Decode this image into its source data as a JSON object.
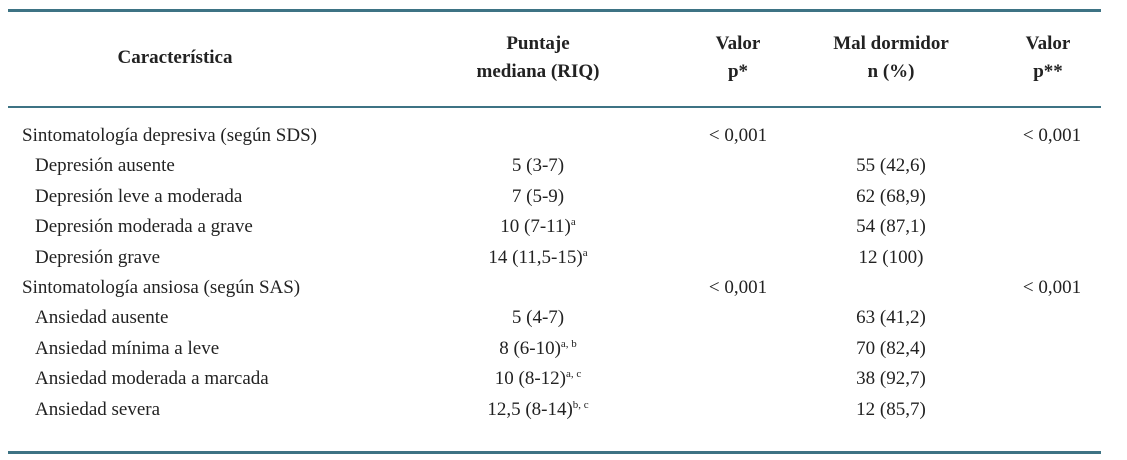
{
  "table": {
    "header": [
      [
        "Característica"
      ],
      [
        "Puntaje",
        "mediana (RIQ)"
      ],
      [
        "Valor",
        "p*"
      ],
      [
        "Mal dormidor",
        "n (%)"
      ],
      [
        "Valor",
        "p**"
      ]
    ],
    "groups": [
      {
        "label": "Sintomatología depresiva (según SDS)",
        "p": "< 0,001",
        "p2": "< 0,001",
        "items": [
          {
            "label": "Depresión ausente",
            "score": "5 (3-7)",
            "n": "55 (42,6)"
          },
          {
            "label": "Depresión leve a moderada",
            "score": "7 (5-9)",
            "n": "62 (68,9)"
          },
          {
            "label": "Depresión moderada a grave",
            "score": "10 (7-11)",
            "sup": "a",
            "n": "54 (87,1)"
          },
          {
            "label": "Depresión grave",
            "score": "14 (11,5-15)",
            "sup": "a",
            "n": "12 (100)"
          }
        ]
      },
      {
        "label": "Sintomatología ansiosa (según SAS)",
        "p": "< 0,001",
        "p2": "< 0,001",
        "items": [
          {
            "label": "Ansiedad ausente",
            "score": "5 (4-7)",
            "n": "63 (41,2)"
          },
          {
            "label": "Ansiedad mínima a leve",
            "score": "8 (6-10)",
            "sup": "a, b",
            "n": "70 (82,4)"
          },
          {
            "label": "Ansiedad moderada a marcada",
            "score": "10 (8-12)",
            "sup": "a, c",
            "n": "38 (92,7)"
          },
          {
            "label": "Ansiedad severa",
            "score": "12,5 (8-14)",
            "sup": "b, c",
            "n": "12 (85,7)"
          }
        ]
      }
    ]
  }
}
